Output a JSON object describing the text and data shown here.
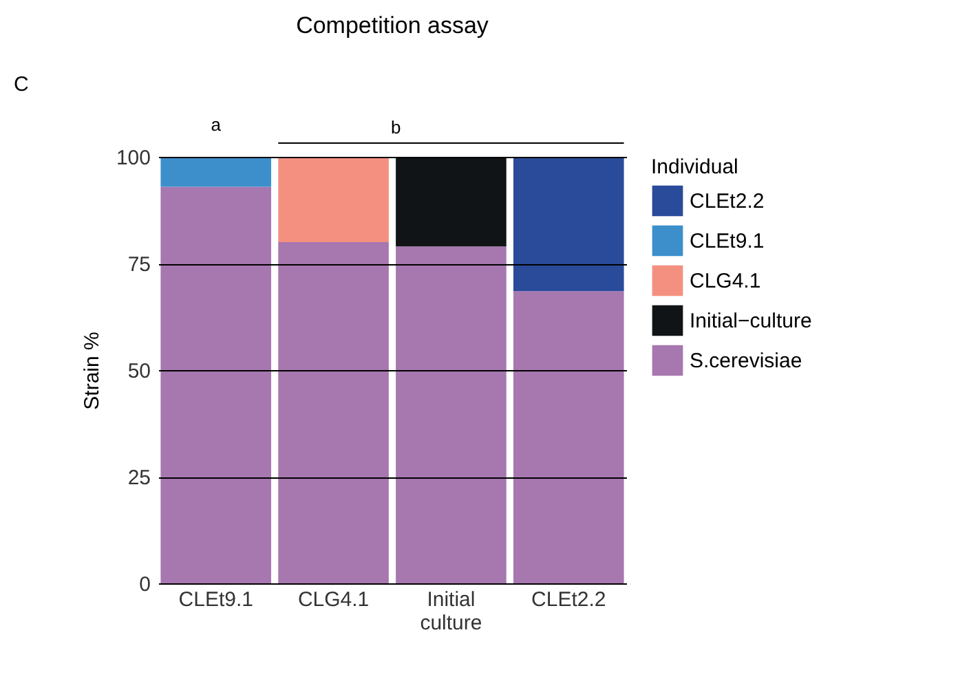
{
  "chart_data": {
    "type": "bar",
    "title": "Competition assay",
    "ylabel": "Strain %",
    "legend_title": "Individual",
    "categories": [
      "CLEt9.1",
      "CLG4.1",
      "Initial culture",
      "CLEt2.2"
    ],
    "stacked": true,
    "series": [
      {
        "name": "S.cerevisiae",
        "color": "#a777b0",
        "values": [
          93,
          80,
          79,
          68.5
        ]
      },
      {
        "name": "Initial−culture",
        "color": "#111417",
        "values": [
          null,
          null,
          21,
          null
        ]
      },
      {
        "name": "CLG4.1",
        "color": "#f49080",
        "values": [
          null,
          20,
          null,
          null
        ]
      },
      {
        "name": "CLEt9.1",
        "color": "#3d8fcc",
        "values": [
          7,
          null,
          null,
          null
        ]
      },
      {
        "name": "CLEt2.2",
        "color": "#2a4a9a",
        "values": [
          null,
          null,
          null,
          31.5
        ]
      }
    ],
    "ylim": [
      0,
      100
    ],
    "yticks": [
      0,
      25,
      50,
      75,
      100
    ],
    "grid": "y",
    "legend": "right",
    "annotations": [
      "C",
      "a",
      "b"
    ]
  }
}
